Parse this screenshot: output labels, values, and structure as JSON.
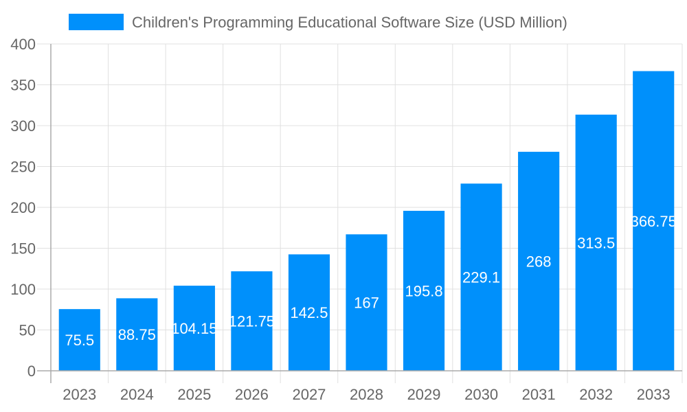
{
  "chart_data": {
    "type": "bar",
    "title": "",
    "xlabel": "",
    "ylabel": "",
    "categories": [
      "2023",
      "2024",
      "2025",
      "2026",
      "2027",
      "2028",
      "2029",
      "2030",
      "2031",
      "2032",
      "2033"
    ],
    "series": [
      {
        "name": "Children's Programming Educational Software Size (USD Million)",
        "values": [
          75.5,
          88.75,
          104.15,
          121.75,
          142.5,
          167,
          195.8,
          229.1,
          268,
          313.5,
          366.75
        ],
        "labels": [
          "75.5",
          "88.75",
          "104.15",
          "121.75",
          "142.5",
          "167",
          "195.8",
          "229.1",
          "268",
          "313.5",
          "366.75"
        ]
      }
    ],
    "ylim": [
      0,
      400
    ],
    "yticks": [
      "0",
      "50",
      "100",
      "150",
      "200",
      "250",
      "300",
      "350",
      "400"
    ],
    "grid": true,
    "legend_position": "top",
    "colors": {
      "bar": "#0090fb",
      "grid": "#e0e0e0",
      "axis": "#aaaaaa",
      "text": "#666666"
    }
  }
}
